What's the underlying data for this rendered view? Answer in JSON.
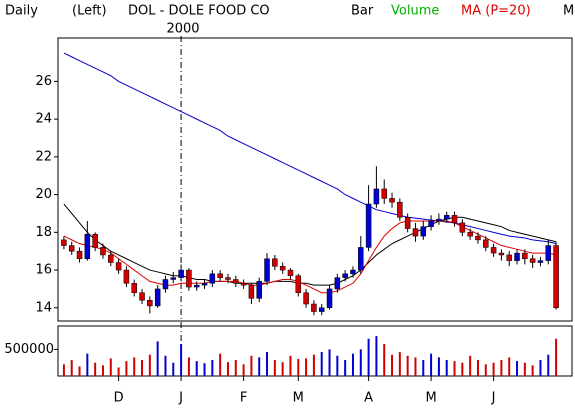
{
  "chart_data": {
    "type": "candlestick",
    "period": "Daily",
    "axis_side": "(Left)",
    "title": "DOL - DOLE FOOD CO",
    "style": "Bar",
    "volume_label": "Volume",
    "ma_label": "MA (P=20)",
    "corner_label": "M",
    "annotation": "2000",
    "up_color": "#0000d0",
    "down_color": "#d00000",
    "volume_label_color": "#00b000",
    "ma_label_color": "#e00000",
    "categories": [
      null,
      null,
      null,
      null,
      null,
      null,
      null,
      "D",
      null,
      null,
      null,
      null,
      null,
      null,
      null,
      "J",
      null,
      null,
      null,
      null,
      null,
      null,
      null,
      "F",
      null,
      null,
      null,
      null,
      null,
      null,
      "M",
      null,
      null,
      null,
      null,
      null,
      null,
      null,
      null,
      "A",
      null,
      null,
      null,
      null,
      null,
      null,
      null,
      "M",
      null,
      null,
      null,
      null,
      null,
      null,
      null,
      "J",
      null,
      null,
      null,
      null,
      null,
      null,
      null,
      null
    ],
    "open": [
      17.6,
      17.3,
      17.0,
      16.6,
      17.9,
      17.2,
      16.8,
      16.4,
      16.0,
      15.3,
      14.8,
      14.4,
      14.1,
      15.0,
      15.5,
      15.6,
      16.0,
      15.1,
      15.2,
      15.3,
      15.8,
      15.6,
      15.5,
      15.3,
      15.2,
      14.5,
      15.4,
      16.6,
      16.2,
      16.0,
      15.7,
      14.8,
      14.2,
      13.8,
      14.0,
      15.0,
      15.6,
      15.8,
      16.0,
      17.2,
      19.5,
      20.3,
      19.8,
      19.6,
      18.8,
      18.2,
      17.8,
      18.3,
      18.6,
      18.7,
      18.9,
      18.5,
      18.0,
      17.8,
      17.6,
      17.2,
      16.9,
      16.8,
      16.5,
      16.9,
      16.6,
      16.4,
      16.5,
      17.3
    ],
    "high": [
      17.8,
      17.5,
      17.2,
      18.6,
      18.0,
      17.4,
      17.0,
      16.6,
      16.2,
      15.5,
      15.0,
      14.6,
      15.2,
      15.7,
      15.9,
      16.3,
      16.1,
      15.4,
      15.5,
      16.0,
      16.0,
      15.8,
      15.7,
      15.5,
      15.3,
      15.6,
      16.9,
      16.8,
      16.4,
      16.1,
      15.8,
      15.0,
      14.4,
      14.2,
      15.2,
      15.8,
      16.0,
      16.2,
      17.8,
      20.5,
      21.5,
      20.8,
      20.1,
      19.8,
      19.0,
      18.5,
      18.6,
      18.9,
      19.0,
      19.1,
      19.1,
      18.7,
      18.2,
      18.0,
      17.8,
      17.4,
      17.1,
      17.0,
      17.1,
      17.1,
      16.8,
      16.7,
      17.6,
      17.5
    ],
    "low": [
      17.1,
      16.8,
      16.4,
      16.5,
      17.0,
      16.6,
      16.2,
      15.8,
      15.1,
      14.6,
      14.2,
      13.7,
      14.0,
      14.8,
      15.3,
      15.4,
      14.9,
      14.9,
      15.0,
      15.1,
      15.4,
      15.3,
      15.1,
      15.0,
      14.2,
      14.3,
      15.2,
      16.0,
      15.8,
      15.5,
      14.6,
      14.0,
      13.6,
      13.6,
      13.9,
      14.8,
      15.4,
      15.6,
      15.8,
      17.0,
      19.3,
      19.5,
      19.3,
      18.6,
      18.0,
      17.5,
      17.6,
      18.1,
      18.4,
      18.5,
      18.3,
      17.8,
      17.6,
      17.4,
      17.0,
      16.7,
      16.5,
      16.2,
      16.3,
      16.3,
      16.1,
      16.2,
      16.3,
      13.9
    ],
    "close": [
      17.3,
      17.0,
      16.6,
      17.9,
      17.2,
      16.8,
      16.4,
      16.0,
      15.3,
      14.8,
      14.4,
      14.1,
      15.0,
      15.5,
      15.6,
      16.0,
      15.1,
      15.2,
      15.3,
      15.8,
      15.6,
      15.5,
      15.3,
      15.2,
      14.5,
      15.4,
      16.6,
      16.2,
      16.0,
      15.7,
      14.8,
      14.2,
      13.8,
      14.0,
      15.0,
      15.6,
      15.8,
      16.0,
      17.2,
      19.5,
      20.3,
      19.8,
      19.6,
      18.8,
      18.2,
      17.8,
      18.3,
      18.6,
      18.7,
      18.9,
      18.5,
      18.0,
      17.8,
      17.6,
      17.2,
      16.9,
      16.8,
      16.5,
      16.9,
      16.6,
      16.4,
      16.5,
      17.3,
      14.0
    ],
    "lines": [
      {
        "color": "#0000d0",
        "values": [
          27.5,
          27.3,
          27.1,
          26.9,
          26.7,
          26.5,
          26.3,
          26.0,
          25.8,
          25.6,
          25.4,
          25.2,
          25.0,
          24.8,
          24.6,
          24.4,
          24.2,
          24.0,
          23.8,
          23.6,
          23.4,
          23.1,
          22.9,
          22.7,
          22.5,
          22.3,
          22.1,
          21.9,
          21.7,
          21.5,
          21.3,
          21.1,
          20.9,
          20.7,
          20.5,
          20.3,
          20.0,
          19.8,
          19.6,
          19.4,
          19.2,
          19.1,
          19.0,
          18.9,
          18.8,
          18.75,
          18.7,
          18.65,
          18.6,
          18.55,
          18.5,
          18.4,
          18.3,
          18.2,
          18.1,
          18.0,
          17.9,
          17.8,
          17.75,
          17.7,
          17.6,
          17.55,
          17.5,
          17.4
        ]
      },
      {
        "color": "#000000",
        "values": [
          19.5,
          19.0,
          18.5,
          18.0,
          17.6,
          17.3,
          17.0,
          16.8,
          16.6,
          16.4,
          16.2,
          16.0,
          15.9,
          15.8,
          15.7,
          15.7,
          15.6,
          15.5,
          15.5,
          15.4,
          15.4,
          15.4,
          15.3,
          15.3,
          15.3,
          15.3,
          15.3,
          15.4,
          15.4,
          15.4,
          15.3,
          15.3,
          15.2,
          15.2,
          15.2,
          15.3,
          15.5,
          15.7,
          16.0,
          16.4,
          16.8,
          17.1,
          17.4,
          17.6,
          17.8,
          18.0,
          18.2,
          18.4,
          18.6,
          18.7,
          18.8,
          18.8,
          18.7,
          18.6,
          18.5,
          18.4,
          18.3,
          18.1,
          18.0,
          17.9,
          17.8,
          17.7,
          17.6,
          17.5
        ]
      },
      {
        "color": "#e00000",
        "values": [
          17.8,
          17.6,
          17.4,
          17.3,
          17.2,
          17.1,
          16.9,
          16.6,
          16.3,
          16.0,
          15.7,
          15.4,
          15.3,
          15.2,
          15.2,
          15.3,
          15.3,
          15.3,
          15.3,
          15.4,
          15.4,
          15.4,
          15.4,
          15.3,
          15.2,
          15.2,
          15.3,
          15.4,
          15.5,
          15.5,
          15.4,
          15.2,
          15.0,
          14.8,
          14.8,
          14.9,
          15.1,
          15.3,
          15.8,
          16.5,
          17.2,
          17.8,
          18.2,
          18.5,
          18.6,
          18.6,
          18.6,
          18.6,
          18.6,
          18.6,
          18.5,
          18.3,
          18.1,
          17.9,
          17.7,
          17.5,
          17.3,
          17.2,
          17.1,
          17.0,
          16.9,
          16.9,
          16.9,
          16.8
        ]
      }
    ],
    "ylim": [
      13.3,
      28.3
    ],
    "yticks": [
      14,
      16,
      18,
      20,
      22,
      24,
      26
    ],
    "volume": {
      "values": [
        220000,
        300000,
        180000,
        420000,
        250000,
        200000,
        330000,
        160000,
        280000,
        350000,
        300000,
        400000,
        650000,
        380000,
        250000,
        600000,
        350000,
        280000,
        240000,
        300000,
        420000,
        260000,
        300000,
        220000,
        380000,
        350000,
        450000,
        300000,
        260000,
        380000,
        320000,
        330000,
        400000,
        450000,
        500000,
        380000,
        300000,
        420000,
        500000,
        700000,
        750000,
        600000,
        400000,
        450000,
        380000,
        350000,
        300000,
        420000,
        350000,
        300000,
        280000,
        250000,
        380000,
        300000,
        220000,
        250000,
        300000,
        350000,
        280000,
        250000,
        200000,
        300000,
        400000,
        700000
      ],
      "ylim": [
        0,
        940000
      ],
      "yticks": [
        500000
      ]
    }
  }
}
